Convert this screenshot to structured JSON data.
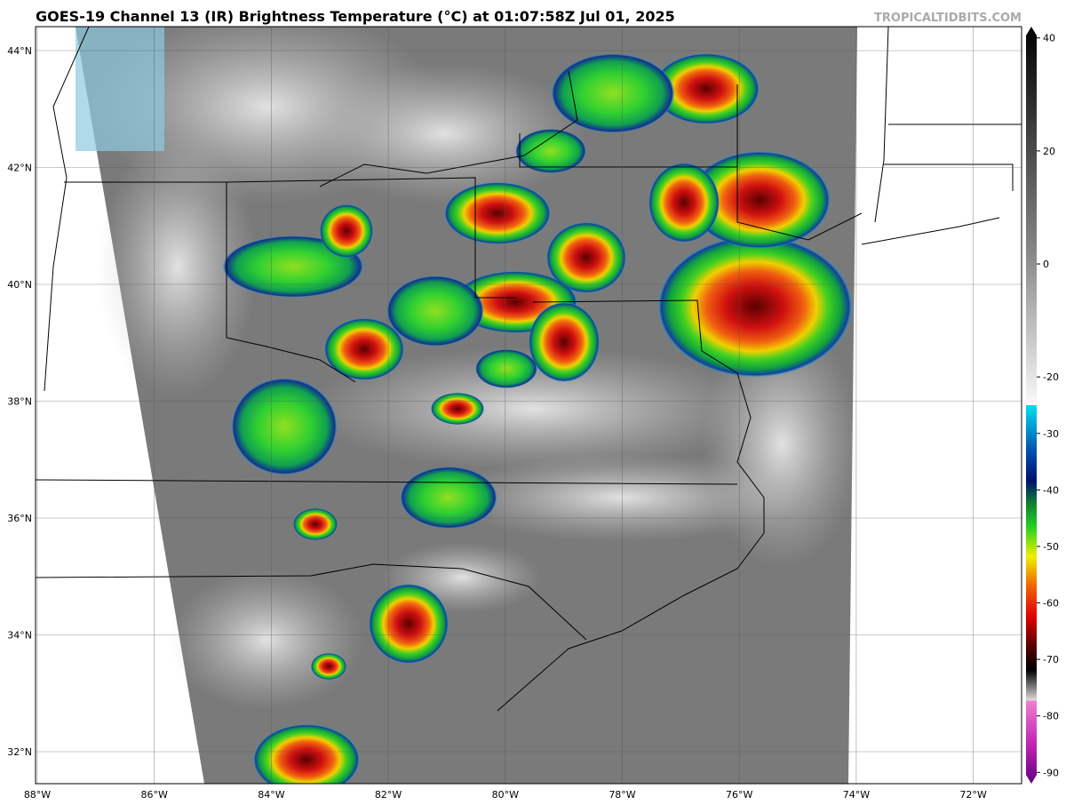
{
  "header": {
    "title": "GOES-19 Channel 13 (IR) Brightness Temperature (°C) at 01:07:58Z Jul 01, 2025",
    "source": "TROPICALTIDBITS.COM"
  },
  "map": {
    "latitude_labels": [
      "44°N",
      "42°N",
      "40°N",
      "38°N",
      "36°N",
      "34°N",
      "32°N"
    ],
    "longitude_labels": [
      "88°W",
      "86°W",
      "84°W",
      "82°W",
      "80°W",
      "78°W",
      "76°W",
      "74°W",
      "72°W"
    ]
  },
  "colorbar": {
    "lim": [
      -92,
      42
    ],
    "ticks": [
      40,
      20,
      0,
      -20,
      -30,
      -40,
      -50,
      -60,
      -70,
      -80,
      -90
    ]
  }
}
